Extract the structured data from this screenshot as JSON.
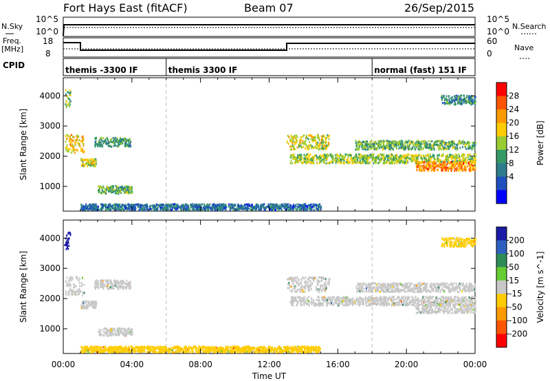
{
  "header": {
    "station": "Fort Hays East (fitACF)",
    "beam": "Beam 07",
    "date": "26/Sep/2015"
  },
  "summary": {
    "nsky_label": "N.Sky",
    "nsearch_label": "N.Search",
    "freq_label_1": "Freq.",
    "freq_label_2": "[MHz]",
    "nave_label": "Nave",
    "cpid_label": "CPID",
    "left_ticks_top": [
      "10^5",
      "10^0"
    ],
    "left_ticks_freq": [
      "18",
      "8"
    ],
    "right_ticks_top": [
      "10^5",
      "10^0"
    ],
    "right_ticks_freq": [
      "60",
      "0"
    ]
  },
  "cpid_segments": [
    {
      "label": "themis -3300 IF",
      "start": 0,
      "end": 6
    },
    {
      "label": "themis 3300 IF",
      "start": 6,
      "end": 18
    },
    {
      "label": "normal (fast) 151 IF",
      "start": 18,
      "end": 24
    }
  ],
  "chart_data": [
    {
      "type": "heatmap",
      "name": "power-panel",
      "ylabel": "Slant Range [km]",
      "x_range_hours": [
        0,
        24
      ],
      "ylim": [
        180,
        4600
      ],
      "yticks": [
        1000,
        2000,
        3000,
        4000
      ],
      "colorbar": {
        "label": "Power [dB]",
        "ticks": [
          "28",
          "24",
          "20",
          "16",
          "12",
          "8",
          "4"
        ],
        "colors": [
          "#ff0000",
          "#ff5500",
          "#ff9900",
          "#ffcc00",
          "#99cc33",
          "#339966",
          "#2e7d8c",
          "#1f4fbf",
          "#0000ff"
        ],
        "range": [
          0,
          32
        ]
      },
      "echo_regions": [
        {
          "t0": 0.1,
          "t1": 1.2,
          "r0": 2100,
          "r1": 2700,
          "level": 20
        },
        {
          "t0": 1.0,
          "t1": 1.9,
          "r0": 1650,
          "r1": 1900,
          "level": 18
        },
        {
          "t0": 1.8,
          "t1": 3.9,
          "r0": 2300,
          "r1": 2600,
          "level": 12
        },
        {
          "t0": 2.0,
          "t1": 4.0,
          "r0": 750,
          "r1": 1000,
          "level": 14
        },
        {
          "t0": 0.05,
          "t1": 0.4,
          "r0": 3600,
          "r1": 4200,
          "level": 14
        },
        {
          "t0": 13.0,
          "t1": 15.5,
          "r0": 2200,
          "r1": 2700,
          "level": 18
        },
        {
          "t0": 13.2,
          "t1": 24.0,
          "r0": 1750,
          "r1": 2050,
          "level": 16
        },
        {
          "t0": 17.0,
          "t1": 24.0,
          "r0": 2200,
          "r1": 2500,
          "level": 14
        },
        {
          "t0": 20.5,
          "t1": 24.0,
          "r0": 1500,
          "r1": 1800,
          "level": 24
        },
        {
          "t0": 22.0,
          "t1": 24.0,
          "r0": 3700,
          "r1": 4000,
          "level": 10
        },
        {
          "t0": 1.0,
          "t1": 15.0,
          "r0": 200,
          "r1": 400,
          "level": 8
        }
      ]
    },
    {
      "type": "heatmap",
      "name": "velocity-panel",
      "ylabel": "Slant Range [km]",
      "xlabel": "Time UT",
      "x_range_hours": [
        0,
        24
      ],
      "xticks": [
        "00:00",
        "04:00",
        "08:00",
        "12:00",
        "16:00",
        "20:00",
        "00:00"
      ],
      "ylim": [
        180,
        4600
      ],
      "yticks": [
        1000,
        2000,
        3000,
        4000
      ],
      "colorbar": {
        "label": "Velocity [m s^-1]",
        "ticks": [
          "200",
          "100",
          "50",
          "15",
          "-15",
          "-50",
          "-100",
          "-200"
        ],
        "colors": [
          "#1a1aa6",
          "#2e5fbf",
          "#2e8b57",
          "#66cc33",
          "#c8c8c8",
          "#ffcc00",
          "#ff9900",
          "#ff5500",
          "#ff0000"
        ],
        "range": [
          -250,
          250
        ]
      },
      "echo_regions": [
        {
          "t0": 0.1,
          "t1": 1.2,
          "r0": 2100,
          "r1": 2700,
          "level": 0
        },
        {
          "t0": 1.0,
          "t1": 1.9,
          "r0": 1650,
          "r1": 1900,
          "level": 0
        },
        {
          "t0": 1.8,
          "t1": 3.9,
          "r0": 2300,
          "r1": 2600,
          "level": 0
        },
        {
          "t0": 2.0,
          "t1": 4.0,
          "r0": 750,
          "r1": 1000,
          "level": 0
        },
        {
          "t0": 0.05,
          "t1": 0.4,
          "r0": 3600,
          "r1": 4200,
          "level": 220
        },
        {
          "t0": 13.0,
          "t1": 15.5,
          "r0": 2200,
          "r1": 2700,
          "level": 0
        },
        {
          "t0": 13.2,
          "t1": 24.0,
          "r0": 1750,
          "r1": 2050,
          "level": 0
        },
        {
          "t0": 17.0,
          "t1": 24.0,
          "r0": 2200,
          "r1": 2500,
          "level": 0
        },
        {
          "t0": 20.5,
          "t1": 24.0,
          "r0": 1500,
          "r1": 1800,
          "level": 0
        },
        {
          "t0": 22.0,
          "t1": 24.0,
          "r0": 3700,
          "r1": 4000,
          "level": -60
        },
        {
          "t0": 1.0,
          "t1": 15.0,
          "r0": 200,
          "r1": 400,
          "level": -40
        }
      ]
    }
  ]
}
